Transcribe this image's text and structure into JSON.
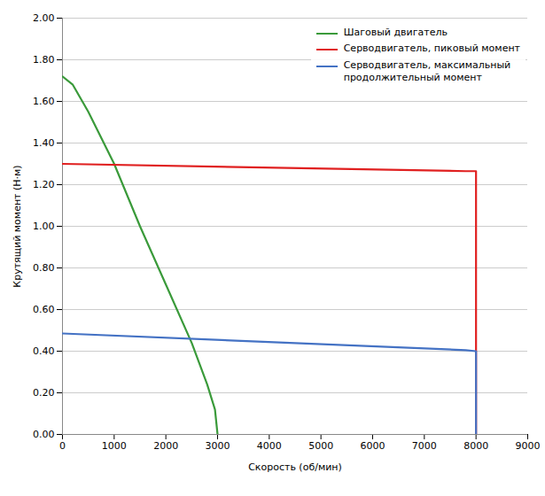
{
  "chart_data": {
    "type": "line",
    "xlabel": "Скорость (об/мин)",
    "ylabel": "Крутящий момент (Н·м)",
    "xlim": [
      0,
      9000
    ],
    "ylim": [
      0.0,
      2.0
    ],
    "xticks": [
      0,
      1000,
      2000,
      3000,
      4000,
      5000,
      6000,
      7000,
      8000,
      9000
    ],
    "yticks": [
      {
        "value": 0.0,
        "label": "0.00"
      },
      {
        "value": 0.2,
        "label": "0.20"
      },
      {
        "value": 0.4,
        "label": "0.40"
      },
      {
        "value": 0.6,
        "label": "0.60"
      },
      {
        "value": 0.8,
        "label": "0.80"
      },
      {
        "value": 1.0,
        "label": "1.00"
      },
      {
        "value": 1.2,
        "label": "1.20"
      },
      {
        "value": 1.4,
        "label": "1.40"
      },
      {
        "value": 1.6,
        "label": "1.60"
      },
      {
        "value": 1.8,
        "label": "1.80"
      },
      {
        "value": 2.0,
        "label": "2.00"
      }
    ],
    "grid": true,
    "legend": "upper right",
    "series": [
      {
        "name": "Шаговый двигатель",
        "color": "#3a9a3a",
        "x": [
          0,
          200,
          500,
          1000,
          1500,
          2000,
          2500,
          2800,
          2950,
          3000
        ],
        "values": [
          1.72,
          1.68,
          1.55,
          1.3,
          1.0,
          0.72,
          0.44,
          0.24,
          0.12,
          0.0
        ]
      },
      {
        "name": "Серводвигатель, пиковый момент",
        "color": "#e02020",
        "x": [
          0,
          7800,
          8000,
          8000
        ],
        "values": [
          1.3,
          1.265,
          1.265,
          0.0
        ]
      },
      {
        "name": "Серводвигатель, максимальный\nпродолжительный момент",
        "color": "#4472c4",
        "x": [
          0,
          7800,
          8000,
          8000
        ],
        "values": [
          0.485,
          0.405,
          0.4,
          0.0
        ]
      }
    ]
  }
}
